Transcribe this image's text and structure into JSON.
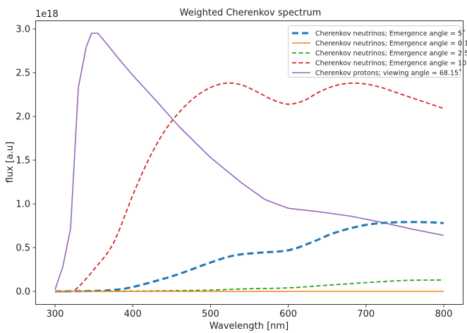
{
  "chart_data": {
    "type": "line",
    "title": "Weighted Cherenkov spectrum",
    "xlabel": "Wavelength [nm]",
    "ylabel": "flux [a.u]",
    "y_offset_text": "1e18",
    "xlim": [
      282,
      827
    ],
    "ylim": [
      -0.15,
      3.1
    ],
    "xticks": [
      300,
      400,
      500,
      600,
      700,
      800
    ],
    "xtick_labels": [
      "300",
      "400",
      "500",
      "600",
      "700",
      "800"
    ],
    "yticks": [
      0.0,
      0.5,
      1.0,
      1.5,
      2.0,
      2.5,
      3.0
    ],
    "ytick_labels": [
      "0.0",
      "0.5",
      "1.0",
      "1.5",
      "2.0",
      "2.5",
      "3.0"
    ],
    "grid": false,
    "legend_position": "top-right",
    "series": [
      {
        "name": "Cherenkov neutrinos; Emergence angle = 5˚",
        "color": "#1f77b4",
        "style": "dashed-thick",
        "x": [
          300,
          350,
          380,
          400,
          430,
          460,
          500,
          530,
          560,
          600,
          630,
          660,
          700,
          740,
          780,
          800
        ],
        "y": [
          0.0,
          0.005,
          0.02,
          0.05,
          0.12,
          0.2,
          0.33,
          0.41,
          0.44,
          0.47,
          0.56,
          0.67,
          0.76,
          0.79,
          0.79,
          0.78
        ]
      },
      {
        "name": "Cherenkov neutrinos; Emergence angle = 0.1˚",
        "color": "#ff7f0e",
        "style": "solid",
        "x": [
          300,
          400,
          500,
          600,
          700,
          800
        ],
        "y": [
          0.0,
          0.0,
          0.0,
          0.0,
          0.0,
          0.0
        ]
      },
      {
        "name": "Cherenkov neutrinos; Emergence angle = 2.5˚",
        "color": "#2ca02c",
        "style": "dashed",
        "x": [
          300,
          400,
          450,
          500,
          550,
          600,
          650,
          700,
          750,
          800
        ],
        "y": [
          0.0,
          0.003,
          0.008,
          0.015,
          0.03,
          0.04,
          0.07,
          0.1,
          0.125,
          0.13
        ]
      },
      {
        "name": "Cherenkov neutrinos; Emergence angle = 10˚",
        "color": "#d62728",
        "style": "dashed",
        "x": [
          300,
          320,
          330,
          350,
          375,
          400,
          420,
          440,
          460,
          480,
          500,
          520,
          540,
          560,
          580,
          600,
          620,
          640,
          660,
          680,
          700,
          720,
          740,
          760,
          780,
          800
        ],
        "y": [
          0.0,
          0.0,
          0.05,
          0.25,
          0.55,
          1.1,
          1.5,
          1.82,
          2.05,
          2.22,
          2.33,
          2.38,
          2.36,
          2.28,
          2.19,
          2.14,
          2.18,
          2.28,
          2.35,
          2.38,
          2.37,
          2.33,
          2.27,
          2.21,
          2.15,
          2.09
        ]
      },
      {
        "name": "Cherenkov protons; viewing angle =  68.15˚",
        "color": "#9467bd",
        "style": "solid",
        "x": [
          300,
          310,
          320,
          330,
          340,
          347,
          355,
          360,
          380,
          400,
          430,
          460,
          500,
          540,
          570,
          600,
          640,
          680,
          720,
          760,
          800
        ],
        "y": [
          0.02,
          0.28,
          0.72,
          2.33,
          2.79,
          2.95,
          2.95,
          2.9,
          2.68,
          2.47,
          2.18,
          1.88,
          1.53,
          1.24,
          1.05,
          0.95,
          0.91,
          0.86,
          0.79,
          0.71,
          0.64
        ]
      }
    ]
  }
}
